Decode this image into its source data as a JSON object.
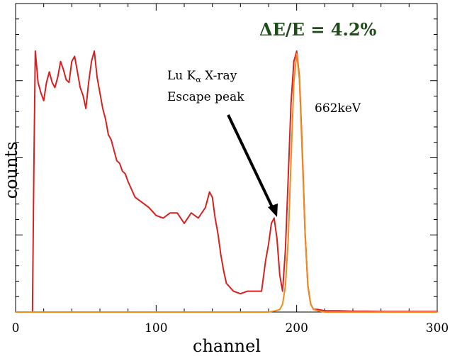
{
  "chart_data": {
    "type": "line",
    "title": "",
    "xlabel": "channel",
    "ylabel": "counts",
    "xlim": [
      0,
      300
    ],
    "ylim": [
      0,
      100
    ],
    "x_ticks": [
      "0",
      "100",
      "200",
      "300"
    ],
    "y_tick_labels_shown": false,
    "grid": false,
    "series": [
      {
        "color": "#d91f1f",
        "x": [
          0,
          12,
          13,
          14,
          15,
          16,
          18,
          20,
          22,
          24,
          26,
          28,
          30,
          32,
          34,
          36,
          38,
          40,
          42,
          44,
          46,
          48,
          50,
          52,
          54,
          56,
          58,
          60,
          62,
          64,
          66,
          68,
          70,
          72,
          74,
          76,
          78,
          80,
          85,
          90,
          95,
          100,
          105,
          110,
          115,
          120,
          125,
          130,
          135,
          138,
          140,
          142,
          144,
          146,
          148,
          150,
          155,
          160,
          165,
          170,
          175,
          176,
          178,
          180,
          182,
          184,
          186,
          188,
          190,
          192,
          194,
          196,
          198,
          200,
          202,
          204,
          206,
          208,
          210,
          212,
          215,
          220,
          230,
          240,
          250,
          260,
          270,
          280,
          290,
          300
        ],
        "y": [
          0,
          0,
          55,
          100,
          94,
          88,
          84,
          81,
          88,
          92,
          88,
          86,
          90,
          96,
          93,
          89,
          88,
          96,
          98,
          92,
          86,
          83,
          78,
          88,
          96,
          100,
          90,
          84,
          78,
          74,
          68,
          66,
          62,
          58,
          57,
          54,
          53,
          50,
          44,
          42,
          40,
          37,
          36,
          38,
          38,
          34,
          38,
          36,
          40,
          46,
          44,
          36,
          30,
          22,
          16,
          11,
          8,
          7,
          8,
          8,
          8,
          12,
          20,
          26,
          34,
          36,
          28,
          14,
          8,
          24,
          52,
          80,
          96,
          100,
          90,
          62,
          30,
          10,
          3,
          1,
          1,
          0.5,
          0.5,
          0.3,
          0.3,
          0.2,
          0.2,
          0.2,
          0.2,
          0.2
        ]
      },
      {
        "color": "#f08a1c",
        "x": [
          0,
          180,
          185,
          188,
          190,
          192,
          194,
          196,
          198,
          200,
          202,
          204,
          206,
          208,
          210,
          212,
          215,
          220,
          300
        ],
        "y": [
          0,
          0,
          0.5,
          1,
          3,
          10,
          28,
          58,
          88,
          99,
          89,
          60,
          30,
          10,
          3,
          1,
          0.5,
          0,
          0
        ]
      }
    ],
    "annotations": {
      "headline": "ΔE/E = 4.2%",
      "escape_line1": "Lu K",
      "escape_sub": "α",
      "escape_line1_rest": " X-ray",
      "escape_line2": "Escape peak",
      "photopeak": "662keV"
    },
    "colors": {
      "headline": "#1f4d1a",
      "arrow": "#000000"
    }
  }
}
